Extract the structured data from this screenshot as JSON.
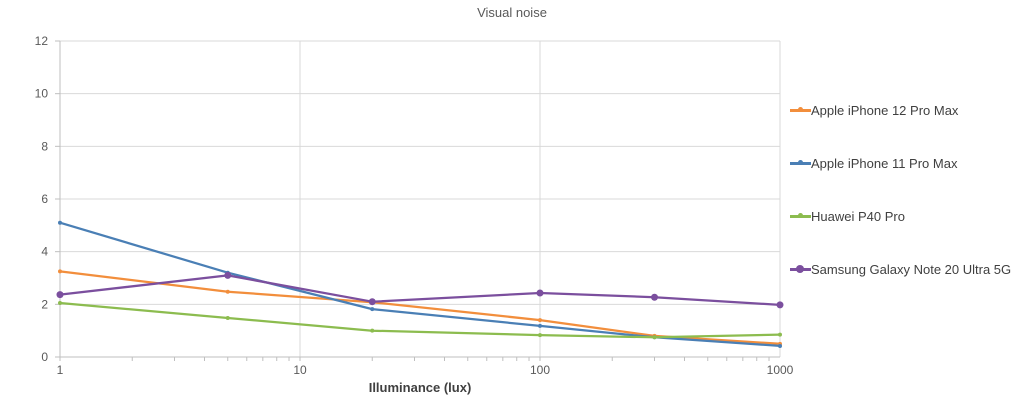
{
  "chart_data": {
    "type": "line",
    "title": "Visual noise",
    "xlabel": "Illuminance (lux)",
    "ylabel": "",
    "x_scale": "log",
    "xlim": [
      1,
      1000
    ],
    "ylim": [
      0,
      12
    ],
    "x_ticks": [
      "1",
      "10",
      "100",
      "1000"
    ],
    "y_ticks": [
      "0",
      "2",
      "4",
      "6",
      "8",
      "10",
      "12"
    ],
    "grid": true,
    "legend_position": "right",
    "series": [
      {
        "name": "Apple iPhone 12 Pro Max",
        "color": "#f28e3c",
        "marker": "small",
        "points": [
          [
            1,
            3.25
          ],
          [
            5,
            2.48
          ],
          [
            20,
            2.08
          ],
          [
            100,
            1.4
          ],
          [
            300,
            0.8
          ],
          [
            1000,
            0.5
          ]
        ]
      },
      {
        "name": "Apple iPhone 11 Pro Max",
        "color": "#4a7fb5",
        "marker": "small",
        "points": [
          [
            1,
            5.1
          ],
          [
            5,
            3.2
          ],
          [
            20,
            1.82
          ],
          [
            100,
            1.18
          ],
          [
            300,
            0.75
          ],
          [
            1000,
            0.42
          ]
        ]
      },
      {
        "name": "Huawei P40 Pro",
        "color": "#8cbc4f",
        "marker": "small",
        "points": [
          [
            1,
            2.05
          ],
          [
            5,
            1.48
          ],
          [
            20,
            1.0
          ],
          [
            100,
            0.83
          ],
          [
            300,
            0.75
          ],
          [
            1000,
            0.85
          ]
        ]
      },
      {
        "name": "Samsung Galaxy Note 20 Ultra 5G",
        "color": "#7b4f9e",
        "marker": "large",
        "points": [
          [
            1,
            2.37
          ],
          [
            5,
            3.1
          ],
          [
            20,
            2.1
          ],
          [
            100,
            2.43
          ],
          [
            300,
            2.27
          ],
          [
            1000,
            1.98
          ]
        ]
      }
    ]
  }
}
